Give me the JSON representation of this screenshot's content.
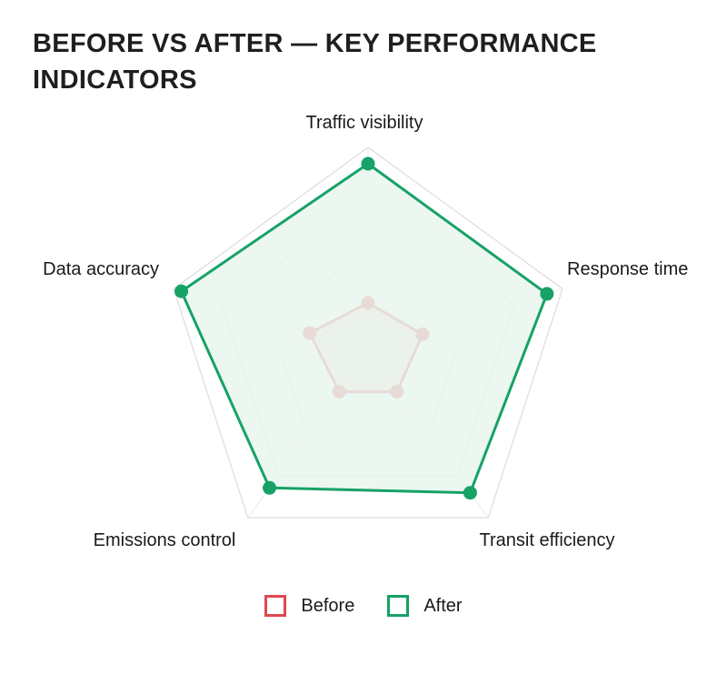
{
  "chart_data": {
    "type": "radar",
    "title": "BEFORE VS AFTER — KEY PERFORMANCE INDICATORS",
    "axes": [
      "Traffic visibility",
      "Response time",
      "Transit efficiency",
      "Emissions control",
      "Data accuracy"
    ],
    "range": [
      0,
      100
    ],
    "grid_levels": [
      25,
      50,
      75,
      100
    ],
    "series": [
      {
        "name": "Before",
        "values": [
          24,
          28,
          24,
          24,
          30
        ],
        "color": "#e0484e",
        "fill": "#f6d2d0"
      },
      {
        "name": "After",
        "values": [
          92,
          92,
          85,
          82,
          96
        ],
        "color": "#17a266",
        "fill": "#e9f6ef"
      }
    ],
    "legend": "bottom-center",
    "grid": true
  }
}
